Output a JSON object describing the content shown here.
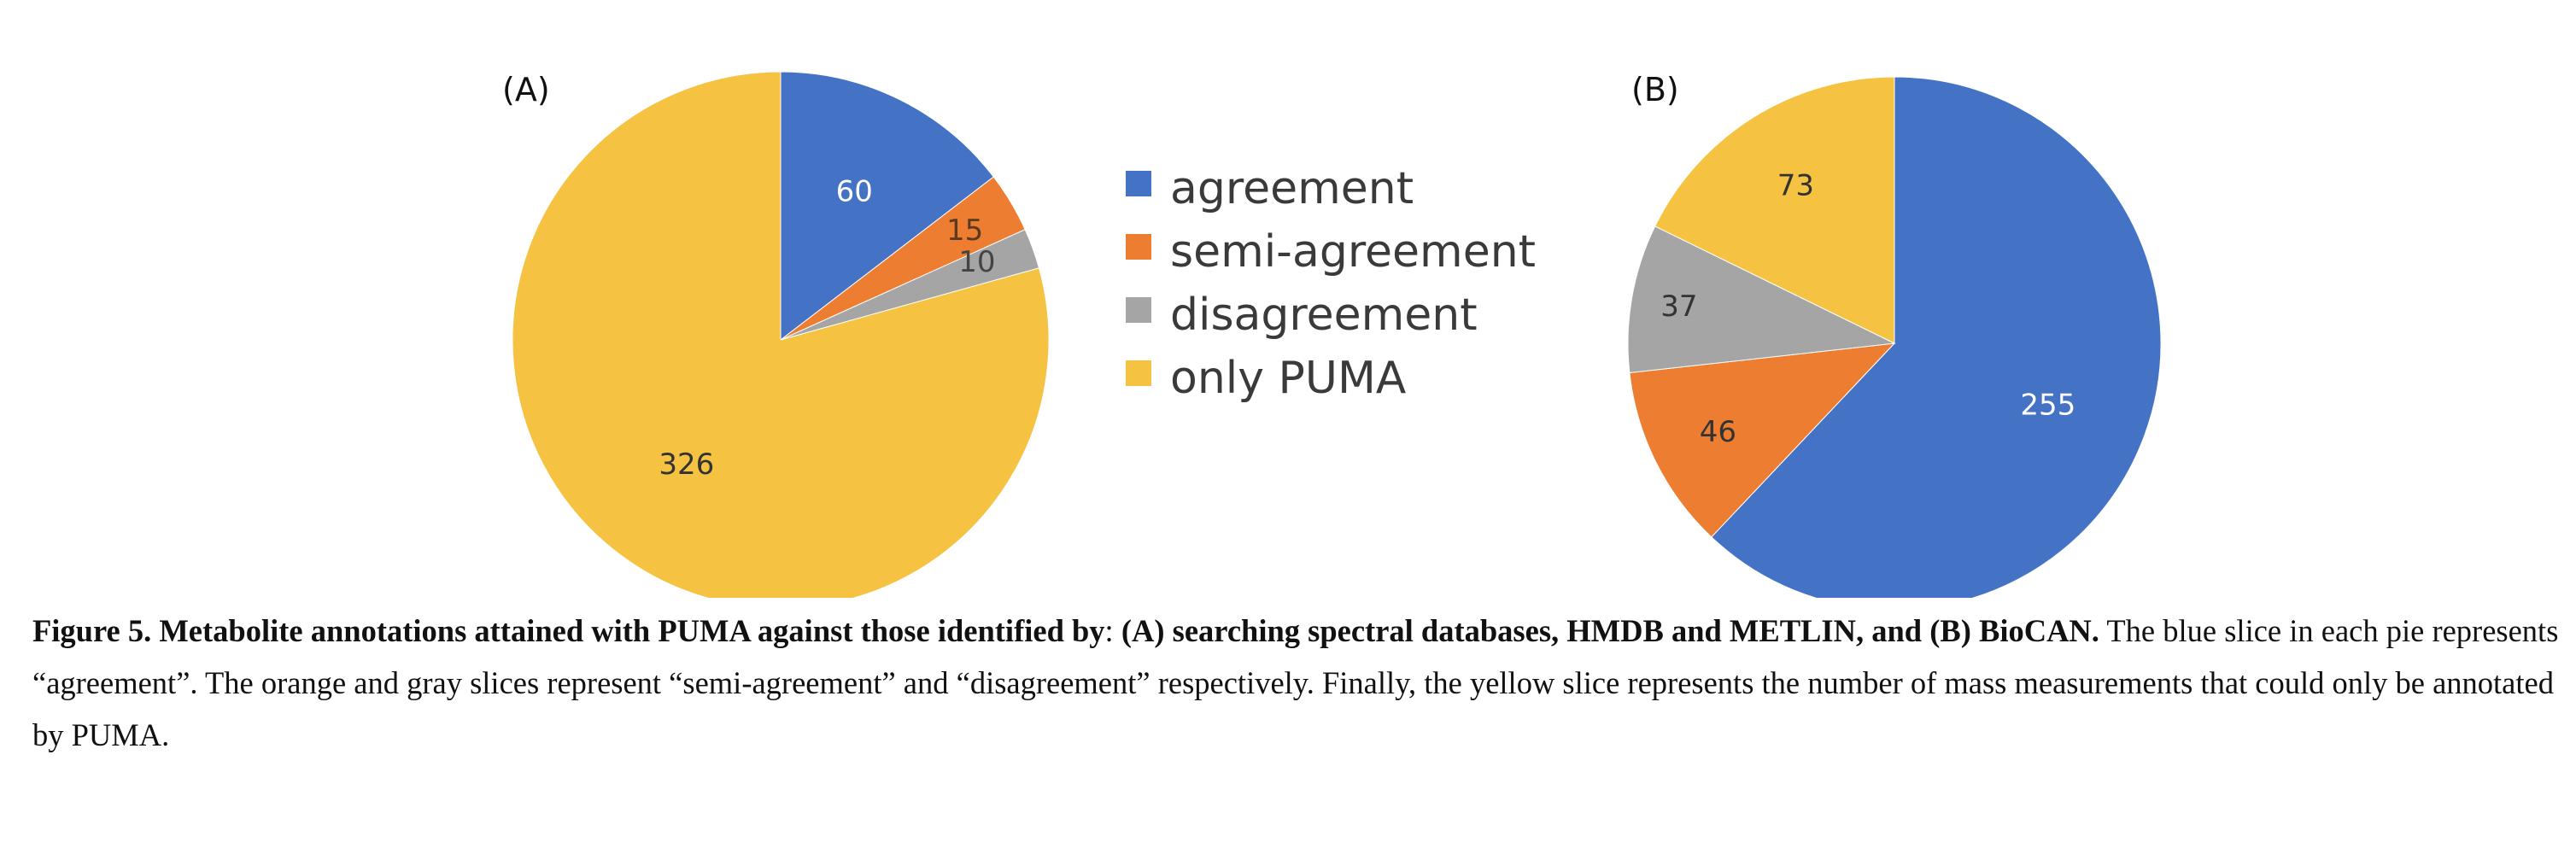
{
  "chart_data": [
    {
      "type": "pie",
      "panel_label": "(A)",
      "categories": [
        "agreement",
        "semi-agreement",
        "disagreement",
        "only PUMA"
      ],
      "values": [
        60,
        15,
        10,
        326
      ],
      "start_angle_deg": 0,
      "direction": "clockwise"
    },
    {
      "type": "pie",
      "panel_label": "(B)",
      "categories": [
        "agreement",
        "semi-agreement",
        "disagreement",
        "only PUMA"
      ],
      "values": [
        255,
        46,
        37,
        73
      ],
      "start_angle_deg": 0,
      "direction": "clockwise"
    }
  ],
  "legend": {
    "placement": "between panels",
    "entries": [
      {
        "label": "agreement",
        "color": "#4472C4"
      },
      {
        "label": "semi-agreement",
        "color": "#ED7D31"
      },
      {
        "label": "disagreement",
        "color": "#A5A5A5"
      },
      {
        "label": "only PUMA",
        "color": "#F5C242"
      }
    ]
  },
  "colors": {
    "agreement": "#4472C4",
    "semi-agreement": "#ED7D31",
    "disagreement": "#A5A5A5",
    "only PUMA": "#F5C242"
  },
  "caption": {
    "bold_part": "Figure 5. Metabolite annotations attained with PUMA against those identified by",
    "colon": ":",
    "bold_part_2": " (A) searching spectral databases, HMDB and METLIN, and (B) BioCAN.",
    "regular_part": " The blue slice in each pie represents “agreement”. The orange and gray slices represent “semi-agreement” and “disagreement” respectively. Finally, the yellow slice represents the number of mass measurements that could only be annotated by PUMA."
  }
}
